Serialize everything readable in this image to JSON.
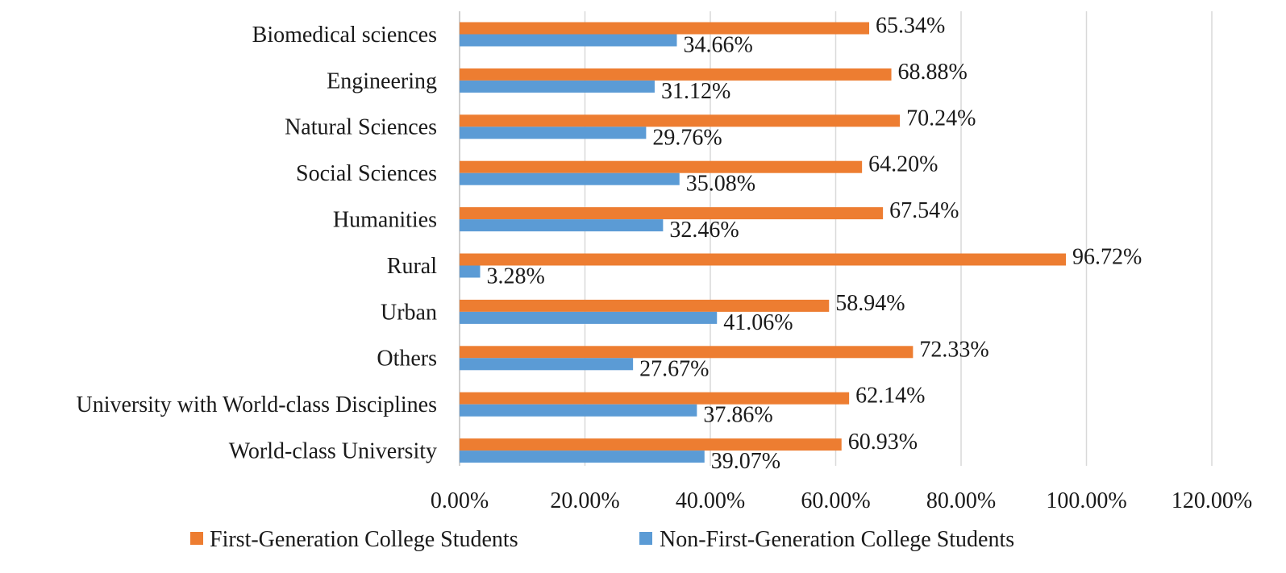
{
  "chart_data": {
    "type": "bar",
    "orientation": "horizontal",
    "title": "",
    "xlabel": "",
    "ylabel": "",
    "xlim": [
      0,
      120
    ],
    "x_ticks": [
      0,
      20,
      40,
      60,
      80,
      100,
      120
    ],
    "x_tick_labels": [
      "0.00%",
      "20.00%",
      "40.00%",
      "60.00%",
      "80.00%",
      "100.00%",
      "120.00%"
    ],
    "grid": "vertical",
    "legend_position": "bottom",
    "categories": [
      "Biomedical sciences",
      "Engineering",
      "Natural Sciences",
      "Social Sciences",
      "Humanities",
      "Rural",
      "Urban",
      "Others",
      "University with World-class Disciplines",
      "World-class University"
    ],
    "series": [
      {
        "name": "First-Generation College Students",
        "color": "#ED7D31",
        "values": [
          65.34,
          68.88,
          70.24,
          64.2,
          67.54,
          96.72,
          58.94,
          72.33,
          62.14,
          60.93
        ],
        "labels": [
          "65.34%",
          "68.88%",
          "70.24%",
          "64.20%",
          "67.54%",
          "96.72%",
          "58.94%",
          "72.33%",
          "62.14%",
          "60.93%"
        ]
      },
      {
        "name": "Non-First-Generation College Students",
        "color": "#5B9BD5",
        "values": [
          34.66,
          31.12,
          29.76,
          35.08,
          32.46,
          3.28,
          41.06,
          27.67,
          37.86,
          39.07
        ],
        "labels": [
          "34.66%",
          "31.12%",
          "29.76%",
          "35.08%",
          "32.46%",
          "3.28%",
          "41.06%",
          "27.67%",
          "37.86%",
          "39.07%"
        ]
      }
    ]
  }
}
